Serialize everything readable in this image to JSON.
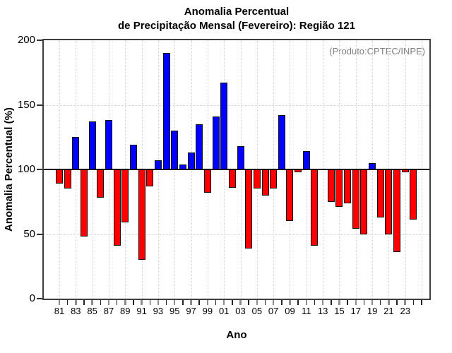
{
  "figure": {
    "title_line1": "Anomalia Percentual",
    "title_line2": "de Precipitação Mensal (Fevereiro): Região 121",
    "xlabel": "Ano",
    "ylabel": "Anomalia Percentual (%)",
    "annotation": "(Produto:CPTEC/INPE)"
  },
  "chart_data": {
    "type": "bar",
    "title": "Anomalia Percentual de Precipitação Mensal (Fevereiro): Região 121",
    "xlabel": "Ano",
    "ylabel": "Anomalia Percentual (%)",
    "annotation": "(Produto:CPTEC/INPE)",
    "baseline": 100,
    "ylim": [
      0,
      200
    ],
    "yticks": [
      0,
      50,
      100,
      150,
      200
    ],
    "grid": "dotted, at 50/150 horizontal and at labeled odd-year verticals",
    "legend_position": "none",
    "categories": [
      "81",
      "82",
      "83",
      "84",
      "85",
      "86",
      "87",
      "88",
      "89",
      "90",
      "91",
      "92",
      "93",
      "94",
      "95",
      "96",
      "97",
      "98",
      "99",
      "00",
      "01",
      "02",
      "03",
      "04",
      "05",
      "06",
      "07",
      "08",
      "09",
      "10",
      "11",
      "12",
      "13",
      "14",
      "15",
      "16",
      "17",
      "18",
      "19",
      "20",
      "21",
      "22",
      "23",
      "24"
    ],
    "values": [
      89,
      85,
      125,
      48,
      137,
      78,
      138,
      41,
      59,
      119,
      30,
      87,
      107,
      190,
      130,
      104,
      113,
      135,
      82,
      141,
      167,
      86,
      118,
      39,
      85,
      80,
      85,
      142,
      60,
      98,
      114,
      41,
      100,
      75,
      71,
      74,
      54,
      50,
      105,
      63,
      50,
      36,
      98,
      61
    ],
    "x_tick_labels": [
      "81",
      "83",
      "85",
      "87",
      "89",
      "91",
      "93",
      "95",
      "97",
      "99",
      "01",
      "03",
      "05",
      "07",
      "09",
      "11",
      "13",
      "15",
      "17",
      "19",
      "21",
      "23"
    ],
    "colors": {
      "above_baseline": "#0000ff",
      "below_baseline": "#ff0000",
      "bar_border": "#111111",
      "grid": "#d4d4d4",
      "annotation_text": "#808080",
      "axis": "#3f3f3f"
    }
  }
}
